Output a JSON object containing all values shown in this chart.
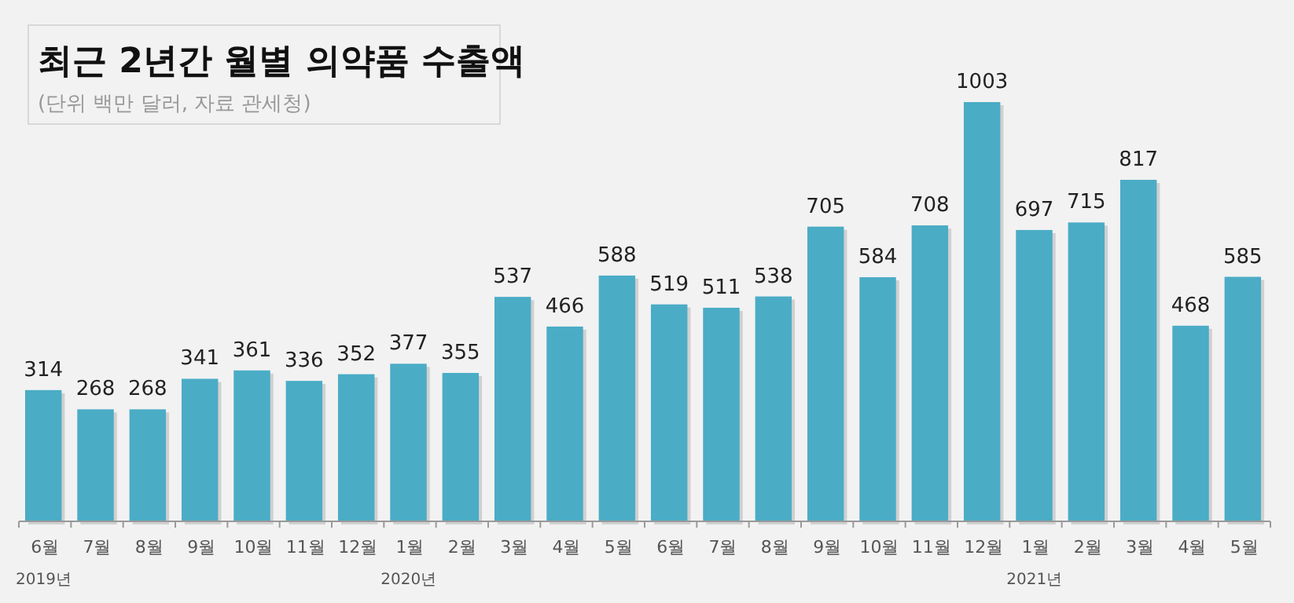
{
  "chart_data": {
    "type": "bar",
    "title": "최근 2년간 월별 의약품 수출액",
    "subtitle": "(단위 백만 달러, 자료 관세청)",
    "categories": [
      "6월\n2019년",
      "7월",
      "8월",
      "9월",
      "10월",
      "11월",
      "12월",
      "1월\n2020년",
      "2월",
      "3월",
      "4월",
      "5월",
      "6월",
      "7월",
      "8월",
      "9월",
      "10월",
      "11월",
      "12월",
      "1월\n2021년",
      "2월",
      "3월",
      "4월",
      "5월"
    ],
    "values": [
      314,
      268,
      268,
      341,
      361,
      336,
      352,
      377,
      355,
      537,
      466,
      588,
      519,
      511,
      538,
      705,
      584,
      708,
      1003,
      697,
      715,
      817,
      468,
      585
    ],
    "color": "#4bacc6",
    "data_labels": true
  }
}
